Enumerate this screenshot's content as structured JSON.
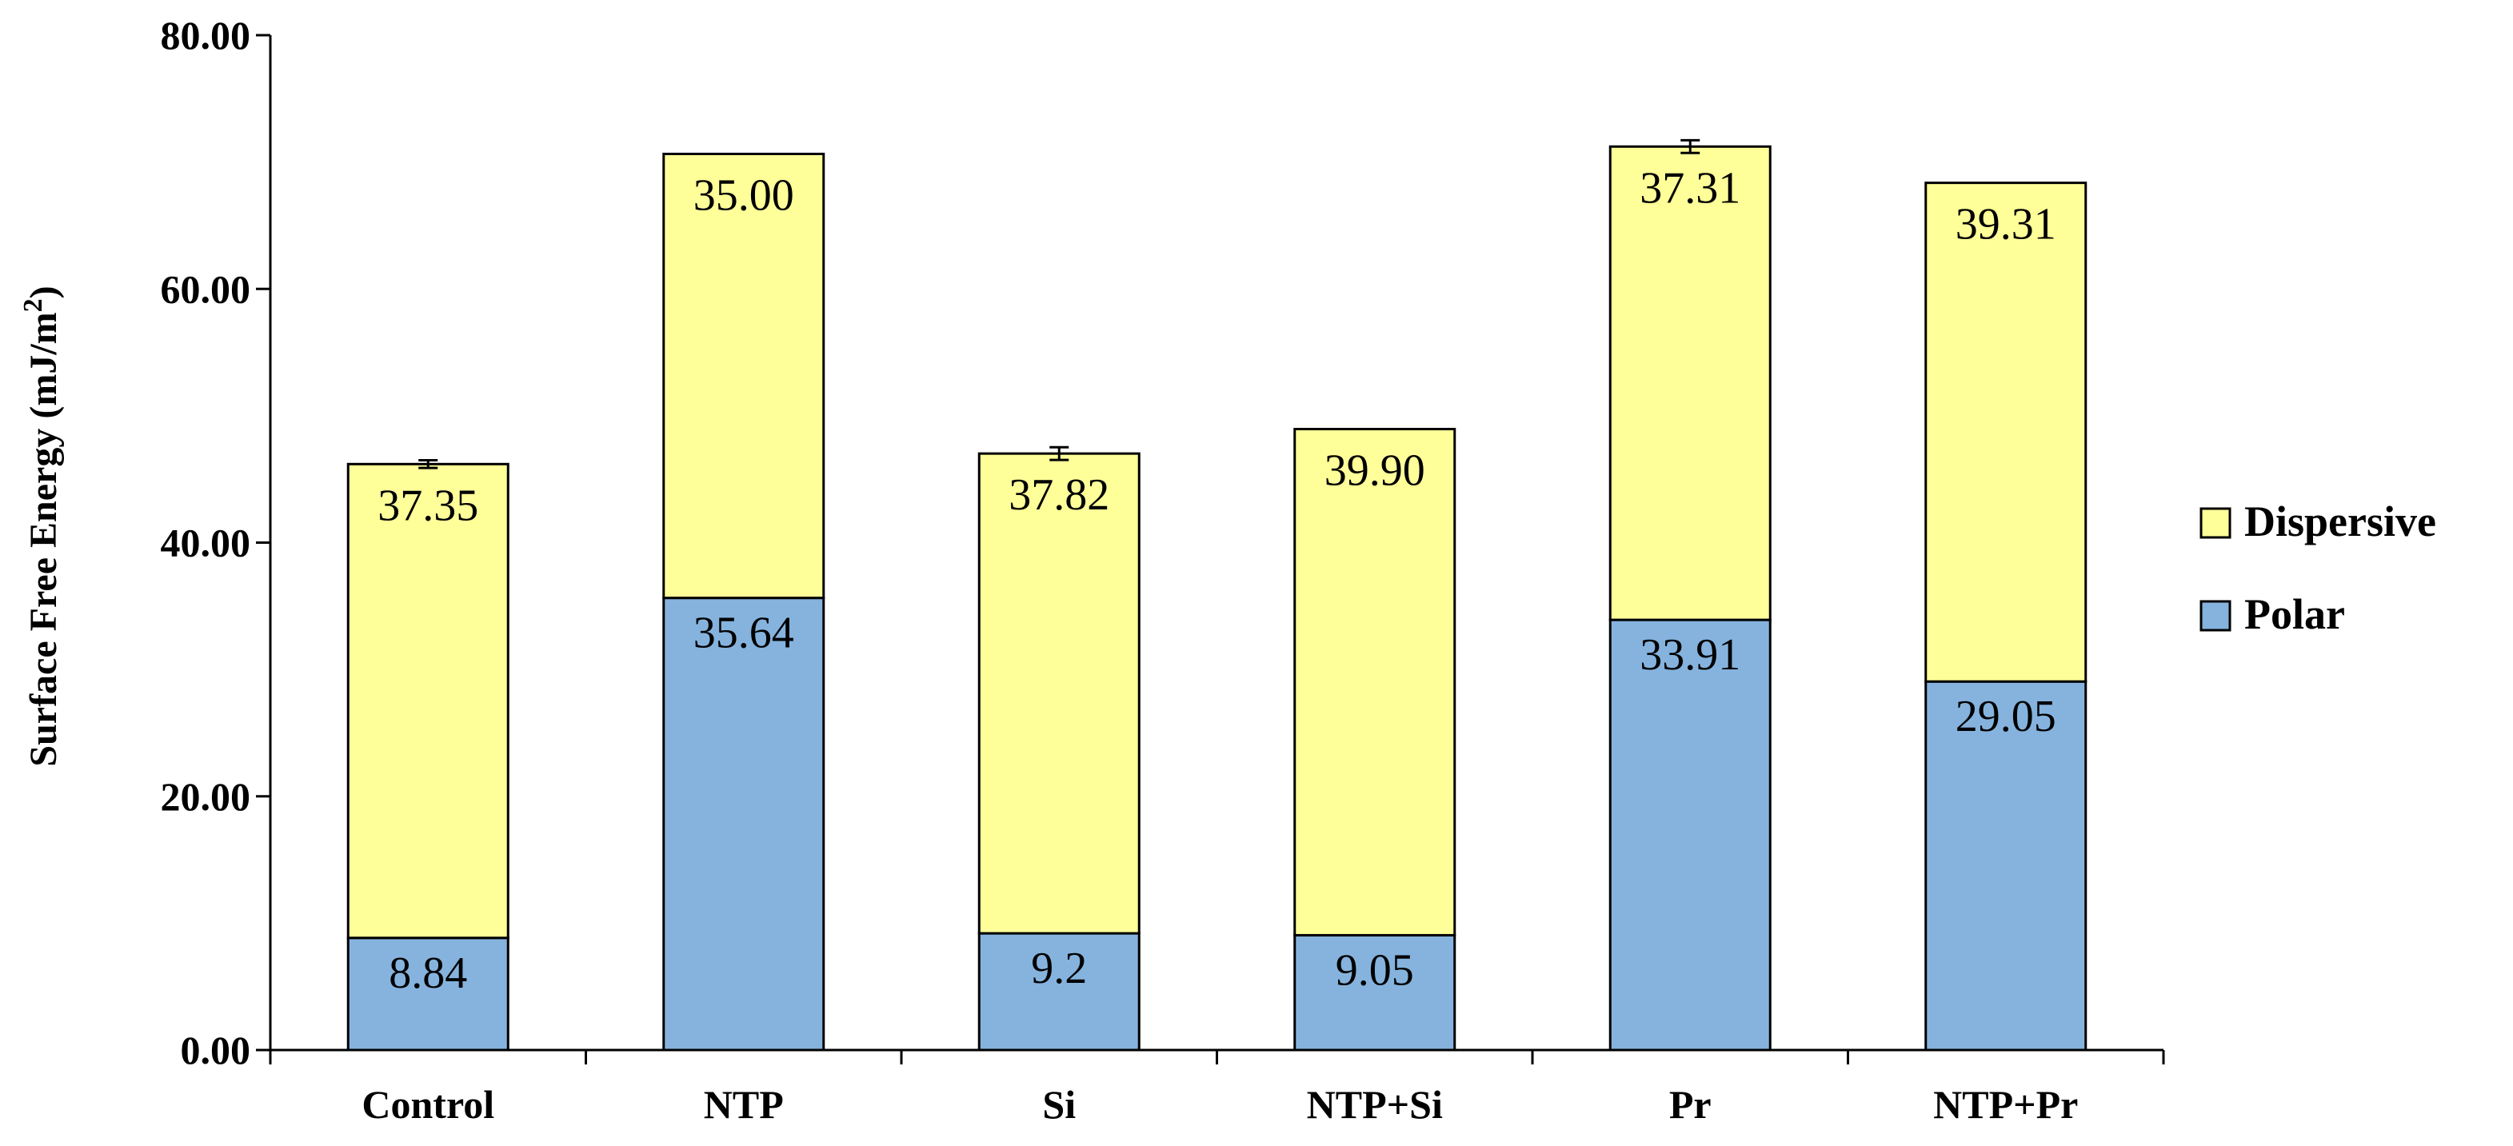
{
  "chart_data": {
    "type": "bar",
    "stacked": true,
    "categories": [
      "Control",
      "NTP",
      "Si",
      "NTP+Si",
      "Pr",
      "NTP+Pr"
    ],
    "series": [
      {
        "name": "Polar",
        "values": [
          8.84,
          35.64,
          9.2,
          9.05,
          33.91,
          29.05
        ],
        "labels": [
          "8.84",
          "35.64",
          "9.2",
          "9.05",
          "33.91",
          "29.05"
        ],
        "color": "#85b3de"
      },
      {
        "name": "Dispersive",
        "values": [
          37.35,
          35.0,
          37.82,
          39.9,
          37.31,
          39.31
        ],
        "labels": [
          "37.35",
          "35.00",
          "37.82",
          "39.90",
          "37.31",
          "39.31"
        ],
        "color": "#ffff99"
      }
    ],
    "error_bars": [
      0.3,
      null,
      0.5,
      null,
      0.5,
      null
    ],
    "ylabel": "Surface Free Energy (mJ/m",
    "ylabel_sup": "2",
    "ylabel_end": ")",
    "ylim": [
      0,
      80
    ],
    "yticks": [
      "0.00",
      "20.00",
      "40.00",
      "60.00",
      "80.00"
    ],
    "legend_position": "right",
    "legend_order": [
      "Dispersive",
      "Polar"
    ],
    "grid": false
  }
}
